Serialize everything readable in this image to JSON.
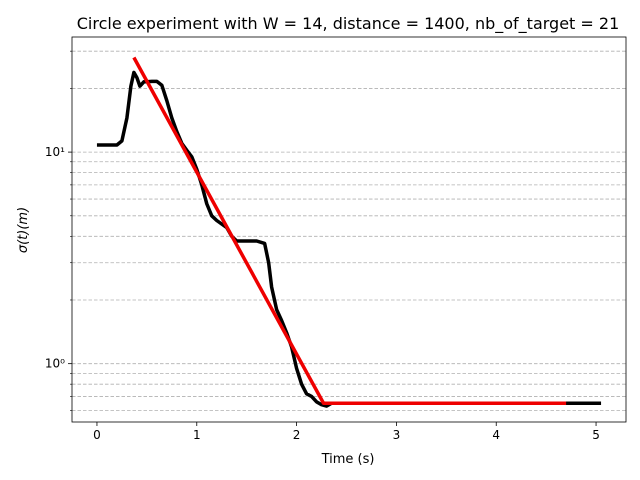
{
  "chart_data": {
    "type": "line",
    "title": "Circle experiment with W = 14, distance = 1400, nb_of_target = 21",
    "xlabel": "Time (s)",
    "ylabel": "σ(t)(m)",
    "xlim": [
      -0.25,
      5.3
    ],
    "ylim": [
      0.53,
      35
    ],
    "yscale": "log",
    "grid": "y-major-and-minor-dashed",
    "xticks": [
      0,
      1,
      2,
      3,
      4,
      5
    ],
    "xtick_labels": [
      "0",
      "1",
      "2",
      "3",
      "4",
      "5"
    ],
    "yticks_major": [
      1,
      10
    ],
    "ytick_labels": [
      "10⁰",
      "10¹"
    ],
    "ygrid_values": [
      0.6,
      0.7,
      0.8,
      0.9,
      1,
      2,
      3,
      4,
      5,
      6,
      7,
      8,
      9,
      10,
      20,
      30
    ],
    "series": [
      {
        "color": "#000000",
        "points": [
          [
            0.0,
            10.8
          ],
          [
            0.2,
            10.8
          ],
          [
            0.25,
            11.3
          ],
          [
            0.3,
            14.5
          ],
          [
            0.34,
            20.5
          ],
          [
            0.37,
            23.8
          ],
          [
            0.4,
            22.5
          ],
          [
            0.43,
            20.5
          ],
          [
            0.47,
            21.5
          ],
          [
            0.5,
            21.5
          ],
          [
            0.55,
            21.6
          ],
          [
            0.6,
            21.6
          ],
          [
            0.65,
            20.7
          ],
          [
            0.7,
            17.5
          ],
          [
            0.75,
            14.5
          ],
          [
            0.8,
            12.5
          ],
          [
            0.85,
            11.0
          ],
          [
            0.9,
            10.2
          ],
          [
            0.95,
            9.5
          ],
          [
            1.0,
            8.3
          ],
          [
            1.05,
            7.0
          ],
          [
            1.1,
            5.7
          ],
          [
            1.15,
            5.0
          ],
          [
            1.2,
            4.75
          ],
          [
            1.3,
            4.4
          ],
          [
            1.35,
            4.0
          ],
          [
            1.4,
            3.8
          ],
          [
            1.5,
            3.8
          ],
          [
            1.6,
            3.8
          ],
          [
            1.68,
            3.7
          ],
          [
            1.72,
            3.0
          ],
          [
            1.75,
            2.3
          ],
          [
            1.8,
            1.8
          ],
          [
            1.85,
            1.6
          ],
          [
            1.9,
            1.4
          ],
          [
            1.95,
            1.2
          ],
          [
            2.0,
            0.95
          ],
          [
            2.05,
            0.8
          ],
          [
            2.1,
            0.72
          ],
          [
            2.15,
            0.7
          ],
          [
            2.2,
            0.66
          ],
          [
            2.25,
            0.64
          ],
          [
            2.3,
            0.63
          ],
          [
            2.35,
            0.65
          ],
          [
            2.4,
            0.65
          ],
          [
            3.0,
            0.65
          ],
          [
            4.0,
            0.65
          ],
          [
            5.05,
            0.65
          ]
        ]
      },
      {
        "color": "#ee0000",
        "points": [
          [
            0.37,
            28.0
          ],
          [
            2.27,
            0.65
          ],
          [
            4.7,
            0.65
          ]
        ]
      }
    ]
  }
}
